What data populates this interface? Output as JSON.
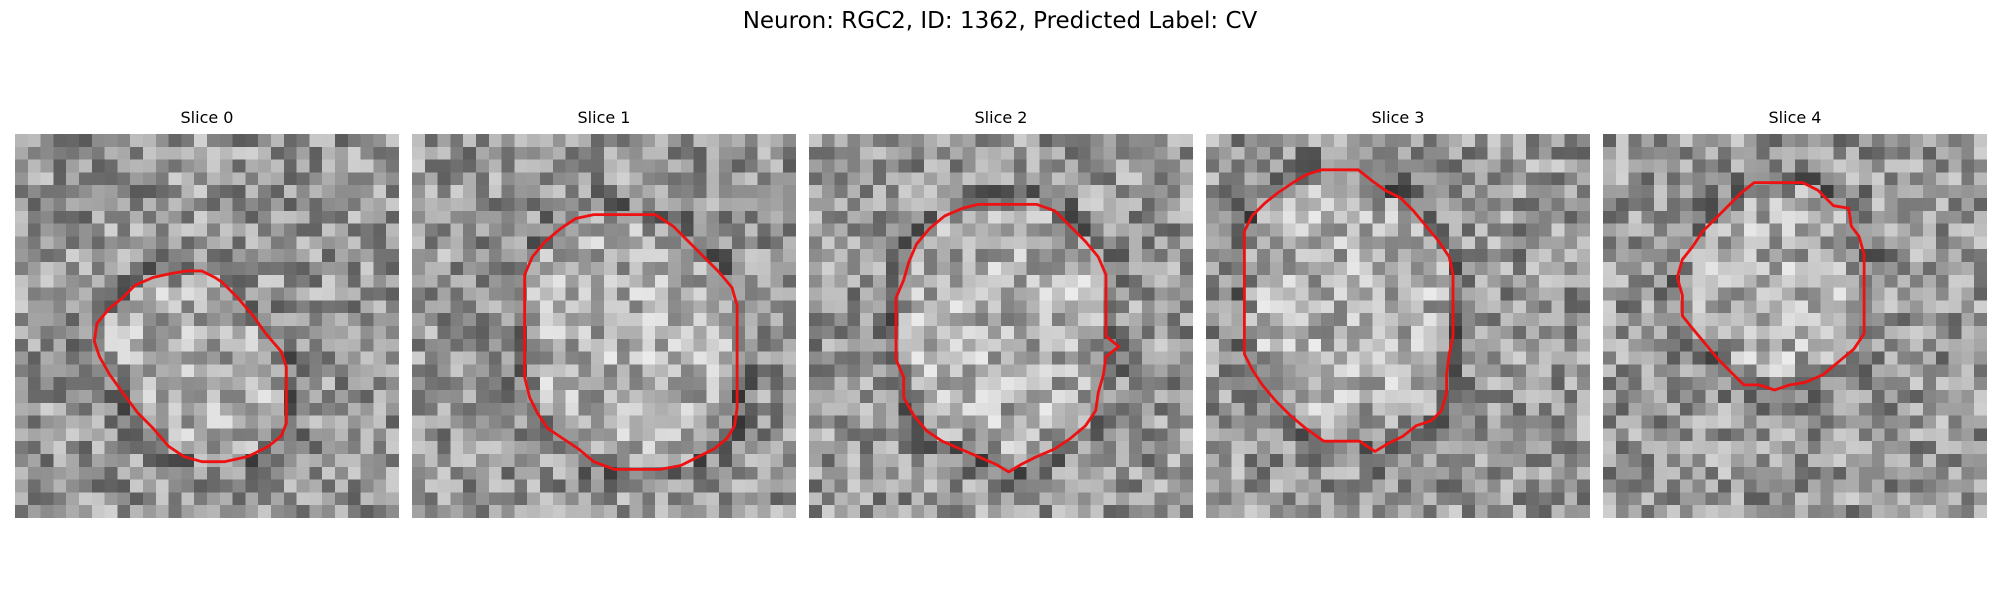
{
  "figure": {
    "title": "Neuron: RGC2, ID: 1362, Predicted Label: CV"
  },
  "panels": [
    {
      "title": "Slice 0",
      "contour": [
        [
          14.6,
          10.7
        ],
        [
          15.6,
          11.2
        ],
        [
          16.2,
          11.6
        ],
        [
          17.4,
          12.8
        ],
        [
          18.6,
          14.2
        ],
        [
          19.6,
          15.6
        ],
        [
          20.8,
          17.0
        ],
        [
          21.2,
          18.2
        ],
        [
          21.2,
          19.8
        ],
        [
          21.2,
          21.2
        ],
        [
          21.2,
          22.6
        ],
        [
          20.8,
          23.6
        ],
        [
          19.8,
          24.4
        ],
        [
          18.2,
          25.2
        ],
        [
          16.4,
          25.6
        ],
        [
          14.6,
          25.6
        ],
        [
          13.2,
          25.2
        ],
        [
          12.0,
          24.4
        ],
        [
          10.8,
          23.0
        ],
        [
          9.6,
          21.8
        ],
        [
          8.4,
          20.2
        ],
        [
          7.4,
          18.8
        ],
        [
          6.6,
          17.4
        ],
        [
          6.2,
          16.2
        ],
        [
          6.4,
          14.8
        ],
        [
          7.4,
          13.6
        ],
        [
          8.4,
          12.8
        ],
        [
          9.4,
          11.8
        ],
        [
          10.8,
          11.2
        ],
        [
          12.2,
          10.9
        ],
        [
          13.4,
          10.7
        ]
      ]
    },
    {
      "title": "Slice 1",
      "contour": [
        [
          15.8,
          6.3
        ],
        [
          17.6,
          6.3
        ],
        [
          19.0,
          6.3
        ],
        [
          20.4,
          7.2
        ],
        [
          21.6,
          8.4
        ],
        [
          22.8,
          9.6
        ],
        [
          24.0,
          10.8
        ],
        [
          25.0,
          12.0
        ],
        [
          25.4,
          13.4
        ],
        [
          25.4,
          15.0
        ],
        [
          25.4,
          16.6
        ],
        [
          25.4,
          18.2
        ],
        [
          25.4,
          19.8
        ],
        [
          25.4,
          21.4
        ],
        [
          25.2,
          22.8
        ],
        [
          24.6,
          23.8
        ],
        [
          23.6,
          24.6
        ],
        [
          22.4,
          25.2
        ],
        [
          21.0,
          25.9
        ],
        [
          19.4,
          26.2
        ],
        [
          17.6,
          26.2
        ],
        [
          15.8,
          26.2
        ],
        [
          14.2,
          25.6
        ],
        [
          13.0,
          24.6
        ],
        [
          11.8,
          23.8
        ],
        [
          10.6,
          23.0
        ],
        [
          9.8,
          21.8
        ],
        [
          9.2,
          20.6
        ],
        [
          8.8,
          19.0
        ],
        [
          8.8,
          17.4
        ],
        [
          8.8,
          15.8
        ],
        [
          8.8,
          14.2
        ],
        [
          8.8,
          12.6
        ],
        [
          8.8,
          11.0
        ],
        [
          9.4,
          9.6
        ],
        [
          10.4,
          8.4
        ],
        [
          11.6,
          7.4
        ],
        [
          12.8,
          6.6
        ],
        [
          14.2,
          6.3
        ]
      ]
    },
    {
      "title": "Slice 2",
      "contour": [
        [
          14.2,
          5.5
        ],
        [
          16.0,
          5.5
        ],
        [
          17.8,
          5.5
        ],
        [
          19.2,
          6.0
        ],
        [
          20.4,
          7.2
        ],
        [
          21.6,
          8.4
        ],
        [
          22.6,
          9.6
        ],
        [
          23.2,
          11.0
        ],
        [
          23.2,
          12.6
        ],
        [
          23.2,
          14.2
        ],
        [
          23.2,
          15.8
        ],
        [
          24.2,
          16.6
        ],
        [
          23.2,
          17.4
        ],
        [
          23.0,
          18.8
        ],
        [
          22.6,
          20.2
        ],
        [
          22.4,
          21.6
        ],
        [
          21.6,
          22.8
        ],
        [
          20.4,
          23.8
        ],
        [
          19.2,
          24.6
        ],
        [
          17.8,
          25.2
        ],
        [
          16.6,
          25.8
        ],
        [
          15.6,
          26.4
        ],
        [
          14.6,
          25.8
        ],
        [
          13.2,
          25.2
        ],
        [
          11.8,
          24.6
        ],
        [
          10.4,
          24.0
        ],
        [
          9.2,
          23.2
        ],
        [
          8.2,
          22.0
        ],
        [
          7.4,
          20.6
        ],
        [
          7.4,
          19.0
        ],
        [
          6.8,
          17.6
        ],
        [
          6.8,
          16.0
        ],
        [
          6.8,
          14.4
        ],
        [
          6.8,
          12.8
        ],
        [
          7.4,
          11.4
        ],
        [
          7.8,
          10.0
        ],
        [
          8.4,
          8.6
        ],
        [
          9.4,
          7.4
        ],
        [
          10.6,
          6.4
        ],
        [
          12.0,
          5.8
        ],
        [
          13.2,
          5.5
        ]
      ]
    },
    {
      "title": "Slice 3",
      "contour": [
        [
          10.3,
          2.8
        ],
        [
          11.9,
          2.8
        ],
        [
          12.9,
          3.6
        ],
        [
          14.0,
          4.4
        ],
        [
          15.2,
          5.0
        ],
        [
          16.2,
          6.0
        ],
        [
          17.2,
          7.2
        ],
        [
          18.2,
          8.4
        ],
        [
          19.0,
          9.6
        ],
        [
          19.3,
          11.0
        ],
        [
          19.3,
          12.6
        ],
        [
          19.3,
          14.2
        ],
        [
          19.3,
          15.8
        ],
        [
          19.0,
          17.2
        ],
        [
          18.8,
          18.8
        ],
        [
          18.8,
          20.2
        ],
        [
          18.4,
          21.6
        ],
        [
          17.6,
          22.4
        ],
        [
          16.4,
          22.8
        ],
        [
          15.4,
          23.6
        ],
        [
          14.2,
          24.2
        ],
        [
          13.2,
          24.8
        ],
        [
          12.0,
          24.0
        ],
        [
          10.6,
          24.0
        ],
        [
          9.2,
          24.0
        ],
        [
          7.8,
          23.0
        ],
        [
          6.6,
          22.0
        ],
        [
          5.4,
          20.8
        ],
        [
          4.4,
          19.6
        ],
        [
          3.6,
          18.4
        ],
        [
          3.0,
          17.2
        ],
        [
          3.0,
          15.6
        ],
        [
          3.0,
          14.0
        ],
        [
          3.0,
          12.4
        ],
        [
          3.0,
          10.8
        ],
        [
          3.0,
          9.2
        ],
        [
          3.0,
          7.6
        ],
        [
          3.6,
          6.4
        ],
        [
          4.6,
          5.4
        ],
        [
          5.6,
          4.6
        ],
        [
          6.8,
          3.8
        ],
        [
          7.8,
          3.2
        ],
        [
          9.0,
          2.8
        ]
      ]
    },
    {
      "title": "Slice 4",
      "contour": [
        [
          14.2,
          3.8
        ],
        [
          15.6,
          3.8
        ],
        [
          16.8,
          4.4
        ],
        [
          18.0,
          5.6
        ],
        [
          19.2,
          5.8
        ],
        [
          19.4,
          7.2
        ],
        [
          20.0,
          8.0
        ],
        [
          20.4,
          9.4
        ],
        [
          20.4,
          11.0
        ],
        [
          20.4,
          12.6
        ],
        [
          20.4,
          14.2
        ],
        [
          20.4,
          15.6
        ],
        [
          19.6,
          16.8
        ],
        [
          18.4,
          17.8
        ],
        [
          17.2,
          18.8
        ],
        [
          15.8,
          19.4
        ],
        [
          14.6,
          19.6
        ],
        [
          13.4,
          20.0
        ],
        [
          12.2,
          19.6
        ],
        [
          11.0,
          19.6
        ],
        [
          10.0,
          18.6
        ],
        [
          9.0,
          17.6
        ],
        [
          8.0,
          16.4
        ],
        [
          7.0,
          15.2
        ],
        [
          6.2,
          14.2
        ],
        [
          6.2,
          12.6
        ],
        [
          5.8,
          11.2
        ],
        [
          6.2,
          9.8
        ],
        [
          7.0,
          8.8
        ],
        [
          7.8,
          7.6
        ],
        [
          8.8,
          6.6
        ],
        [
          9.8,
          5.6
        ],
        [
          10.8,
          4.6
        ],
        [
          11.8,
          3.8
        ],
        [
          13.0,
          3.8
        ]
      ]
    }
  ]
}
